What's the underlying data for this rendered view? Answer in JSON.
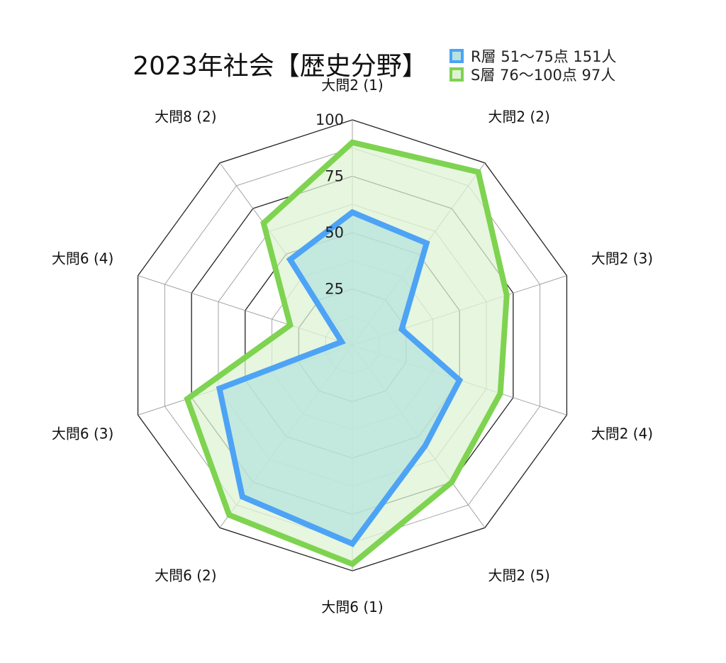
{
  "chart_data": {
    "type": "radar",
    "title": "2023年社会【歴史分野】",
    "categories": [
      "大問2 (1)",
      "大問2 (2)",
      "大問2 (3)",
      "大問2 (4)",
      "大問2 (5)",
      "大問6 (1)",
      "大問6 (2)",
      "大問6 (3)",
      "大問6 (4)",
      "大問8 (2)"
    ],
    "rlim": [
      0,
      100
    ],
    "ticks": [
      25,
      50,
      75,
      100
    ],
    "grid": true,
    "legend_position": "top-right",
    "series": [
      {
        "name": "R層 51〜75点 151人",
        "values": [
          59,
          56,
          23,
          50,
          55,
          88,
          83,
          62,
          5,
          47
        ],
        "stroke": "#4da3f5",
        "fill": "#b7e3dd"
      },
      {
        "name": "S層 76〜100点 97人",
        "values": [
          90,
          95,
          72,
          69,
          75,
          97,
          93,
          77,
          29,
          67
        ],
        "stroke": "#7ed350",
        "fill": "#dff3d3"
      }
    ]
  }
}
